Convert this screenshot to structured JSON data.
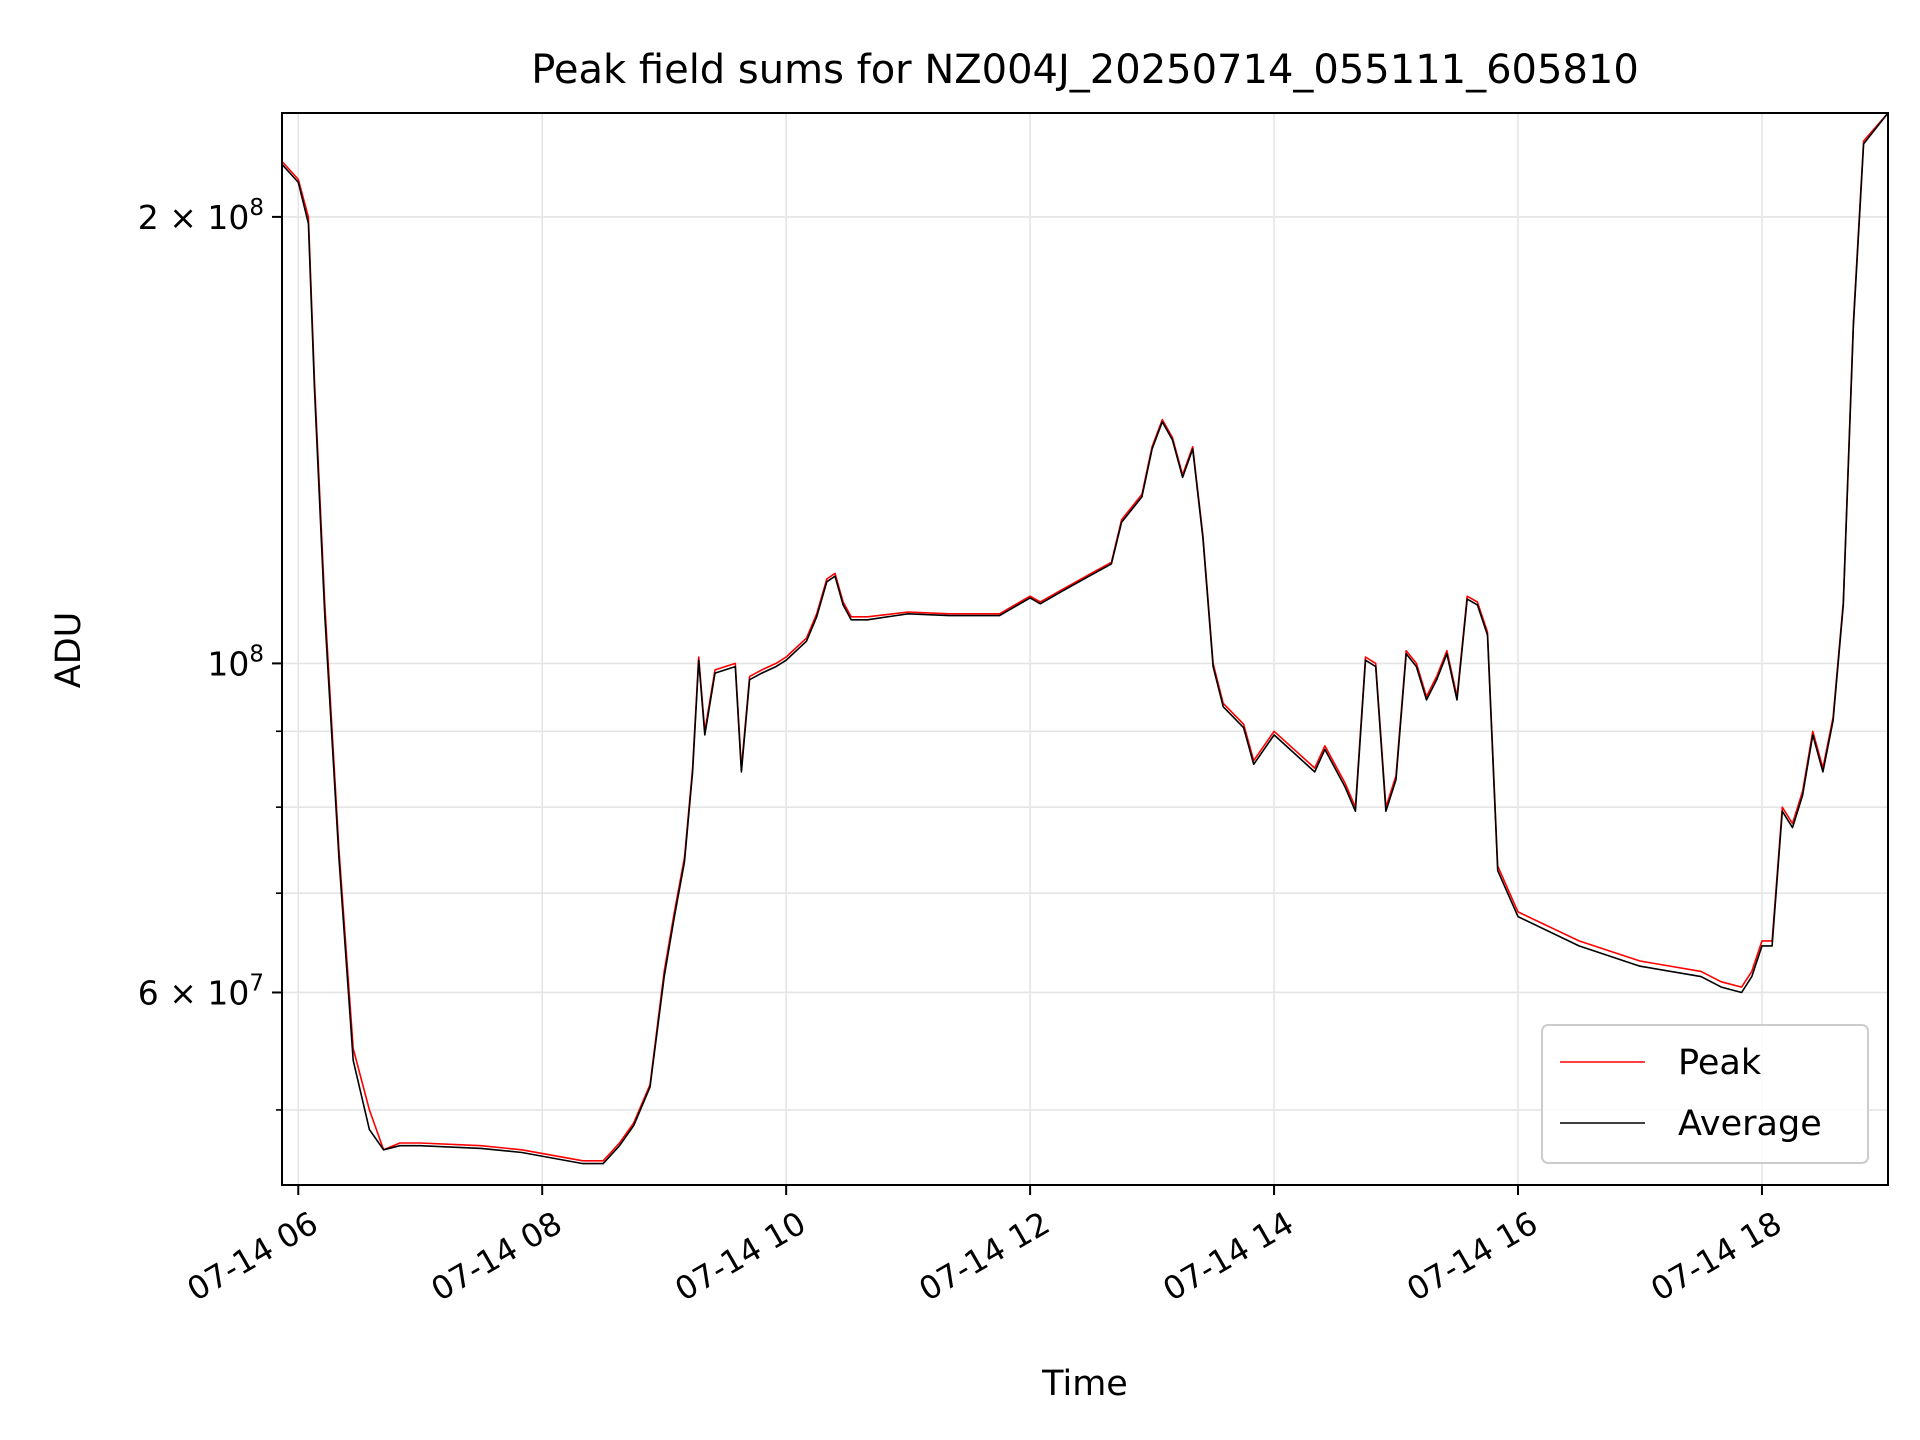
{
  "chart_data": {
    "type": "line",
    "title": "Peak field sums for NZ004J_20250714_055111_605810",
    "xlabel": "Time",
    "ylabel": "ADU",
    "y_scale": "log",
    "xlim": [
      "2025-07-14 05:52",
      "2025-07-14 19:02"
    ],
    "ylim": [
      44500000,
      235000000
    ],
    "grid": true,
    "legend_position": "lower-right",
    "x_ticks": [
      {
        "t": "2025-07-14 06:00",
        "label": "07-14 06"
      },
      {
        "t": "2025-07-14 08:00",
        "label": "07-14 08"
      },
      {
        "t": "2025-07-14 10:00",
        "label": "07-14 10"
      },
      {
        "t": "2025-07-14 12:00",
        "label": "07-14 12"
      },
      {
        "t": "2025-07-14 14:00",
        "label": "07-14 14"
      },
      {
        "t": "2025-07-14 16:00",
        "label": "07-14 16"
      },
      {
        "t": "2025-07-14 18:00",
        "label": "07-14 18"
      }
    ],
    "y_major_ticks": [
      {
        "v": 60000000,
        "mantissa": "6",
        "exp": "7"
      },
      {
        "v": 100000000,
        "mantissa": "",
        "exp": "8"
      },
      {
        "v": 200000000,
        "mantissa": "2",
        "exp": "8"
      }
    ],
    "y_minor_ticks": [
      50000000,
      70000000,
      80000000,
      90000000
    ],
    "series": [
      {
        "name": "Peak",
        "color": "#ff0000",
        "x": [
          "2025-07-14 05:52",
          "2025-07-14 06:00",
          "2025-07-14 06:05",
          "2025-07-14 06:08",
          "2025-07-14 06:13",
          "2025-07-14 06:20",
          "2025-07-14 06:27",
          "2025-07-14 06:35",
          "2025-07-14 06:42",
          "2025-07-14 06:50",
          "2025-07-14 07:00",
          "2025-07-14 07:30",
          "2025-07-14 07:50",
          "2025-07-14 08:20",
          "2025-07-14 08:30",
          "2025-07-14 08:38",
          "2025-07-14 08:45",
          "2025-07-14 08:53",
          "2025-07-14 09:00",
          "2025-07-14 09:05",
          "2025-07-14 09:10",
          "2025-07-14 09:14",
          "2025-07-14 09:17",
          "2025-07-14 09:20",
          "2025-07-14 09:25",
          "2025-07-14 09:35",
          "2025-07-14 09:38",
          "2025-07-14 09:42",
          "2025-07-14 09:48",
          "2025-07-14 09:55",
          "2025-07-14 10:00",
          "2025-07-14 10:10",
          "2025-07-14 10:15",
          "2025-07-14 10:20",
          "2025-07-14 10:24",
          "2025-07-14 10:28",
          "2025-07-14 10:32",
          "2025-07-14 10:40",
          "2025-07-14 11:00",
          "2025-07-14 11:20",
          "2025-07-14 11:45",
          "2025-07-14 11:55",
          "2025-07-14 12:00",
          "2025-07-14 12:05",
          "2025-07-14 12:15",
          "2025-07-14 12:30",
          "2025-07-14 12:40",
          "2025-07-14 12:45",
          "2025-07-14 12:55",
          "2025-07-14 13:00",
          "2025-07-14 13:05",
          "2025-07-14 13:10",
          "2025-07-14 13:15",
          "2025-07-14 13:20",
          "2025-07-14 13:25",
          "2025-07-14 13:30",
          "2025-07-14 13:35",
          "2025-07-14 13:45",
          "2025-07-14 13:50",
          "2025-07-14 14:00",
          "2025-07-14 14:20",
          "2025-07-14 14:25",
          "2025-07-14 14:35",
          "2025-07-14 14:40",
          "2025-07-14 14:45",
          "2025-07-14 14:50",
          "2025-07-14 14:55",
          "2025-07-14 15:00",
          "2025-07-14 15:05",
          "2025-07-14 15:10",
          "2025-07-14 15:15",
          "2025-07-14 15:20",
          "2025-07-14 15:25",
          "2025-07-14 15:30",
          "2025-07-14 15:35",
          "2025-07-14 15:40",
          "2025-07-14 15:45",
          "2025-07-14 15:50",
          "2025-07-14 16:00",
          "2025-07-14 16:30",
          "2025-07-14 17:00",
          "2025-07-14 17:30",
          "2025-07-14 17:40",
          "2025-07-14 17:50",
          "2025-07-14 17:55",
          "2025-07-14 18:00",
          "2025-07-14 18:05",
          "2025-07-14 18:10",
          "2025-07-14 18:15",
          "2025-07-14 18:20",
          "2025-07-14 18:25",
          "2025-07-14 18:30",
          "2025-07-14 18:35",
          "2025-07-14 18:40",
          "2025-07-14 18:45",
          "2025-07-14 18:50",
          "2025-07-14 19:02"
        ],
        "y": [
          218000000,
          212000000,
          200000000,
          155000000,
          110000000,
          75000000,
          55000000,
          50000000,
          47000000,
          47500000,
          47500000,
          47300000,
          47000000,
          46200000,
          46200000,
          47500000,
          49000000,
          52000000,
          62000000,
          68000000,
          74000000,
          85000000,
          101000000,
          90000000,
          99000000,
          100000000,
          85000000,
          98000000,
          99000000,
          100000000,
          101000000,
          104000000,
          108000000,
          114000000,
          115000000,
          110000000,
          107500000,
          107500000,
          108300000,
          108000000,
          108000000,
          110000000,
          111000000,
          110000000,
          112000000,
          115000000,
          117000000,
          125000000,
          130000000,
          140000000,
          146000000,
          142000000,
          134000000,
          140000000,
          122000000,
          100000000,
          94000000,
          91000000,
          86000000,
          90000000,
          85000000,
          88000000,
          83000000,
          80000000,
          101000000,
          100000000,
          80000000,
          84000000,
          102000000,
          100000000,
          95000000,
          98000000,
          102000000,
          95000000,
          111000000,
          110000000,
          105000000,
          73000000,
          68000000,
          65000000,
          63000000,
          62000000,
          61000000,
          60500000,
          62000000,
          65000000,
          65000000,
          80000000,
          78000000,
          82000000,
          90000000,
          85000000,
          92000000,
          110000000,
          170000000,
          225000000,
          235000000
        ]
      },
      {
        "name": "Average",
        "color": "#000000",
        "x": [
          "2025-07-14 05:52",
          "2025-07-14 06:00",
          "2025-07-14 06:05",
          "2025-07-14 06:08",
          "2025-07-14 06:13",
          "2025-07-14 06:20",
          "2025-07-14 06:27",
          "2025-07-14 06:35",
          "2025-07-14 06:42",
          "2025-07-14 06:50",
          "2025-07-14 07:00",
          "2025-07-14 07:30",
          "2025-07-14 07:50",
          "2025-07-14 08:20",
          "2025-07-14 08:30",
          "2025-07-14 08:38",
          "2025-07-14 08:45",
          "2025-07-14 08:53",
          "2025-07-14 09:00",
          "2025-07-14 09:05",
          "2025-07-14 09:10",
          "2025-07-14 09:14",
          "2025-07-14 09:17",
          "2025-07-14 09:20",
          "2025-07-14 09:25",
          "2025-07-14 09:35",
          "2025-07-14 09:38",
          "2025-07-14 09:42",
          "2025-07-14 09:48",
          "2025-07-14 09:55",
          "2025-07-14 10:00",
          "2025-07-14 10:10",
          "2025-07-14 10:15",
          "2025-07-14 10:20",
          "2025-07-14 10:24",
          "2025-07-14 10:28",
          "2025-07-14 10:32",
          "2025-07-14 10:40",
          "2025-07-14 11:00",
          "2025-07-14 11:20",
          "2025-07-14 11:45",
          "2025-07-14 11:55",
          "2025-07-14 12:00",
          "2025-07-14 12:05",
          "2025-07-14 12:15",
          "2025-07-14 12:30",
          "2025-07-14 12:40",
          "2025-07-14 12:45",
          "2025-07-14 12:55",
          "2025-07-14 13:00",
          "2025-07-14 13:05",
          "2025-07-14 13:10",
          "2025-07-14 13:15",
          "2025-07-14 13:20",
          "2025-07-14 13:25",
          "2025-07-14 13:30",
          "2025-07-14 13:35",
          "2025-07-14 13:45",
          "2025-07-14 13:50",
          "2025-07-14 14:00",
          "2025-07-14 14:20",
          "2025-07-14 14:25",
          "2025-07-14 14:35",
          "2025-07-14 14:40",
          "2025-07-14 14:45",
          "2025-07-14 14:50",
          "2025-07-14 14:55",
          "2025-07-14 15:00",
          "2025-07-14 15:05",
          "2025-07-14 15:10",
          "2025-07-14 15:15",
          "2025-07-14 15:20",
          "2025-07-14 15:25",
          "2025-07-14 15:30",
          "2025-07-14 15:35",
          "2025-07-14 15:40",
          "2025-07-14 15:45",
          "2025-07-14 15:50",
          "2025-07-14 16:00",
          "2025-07-14 16:30",
          "2025-07-14 17:00",
          "2025-07-14 17:30",
          "2025-07-14 17:40",
          "2025-07-14 17:50",
          "2025-07-14 17:55",
          "2025-07-14 18:00",
          "2025-07-14 18:05",
          "2025-07-14 18:10",
          "2025-07-14 18:15",
          "2025-07-14 18:20",
          "2025-07-14 18:25",
          "2025-07-14 18:30",
          "2025-07-14 18:35",
          "2025-07-14 18:40",
          "2025-07-14 18:45",
          "2025-07-14 18:50",
          "2025-07-14 19:02"
        ],
        "y": [
          217000000,
          211000000,
          198000000,
          153000000,
          108000000,
          74000000,
          54000000,
          48500000,
          47000000,
          47300000,
          47300000,
          47100000,
          46800000,
          46000000,
          46000000,
          47300000,
          48800000,
          51800000,
          61500000,
          67500000,
          73500000,
          84500000,
          100500000,
          89500000,
          98500000,
          99500000,
          84500000,
          97500000,
          98500000,
          99500000,
          100500000,
          103500000,
          107500000,
          113500000,
          114500000,
          109500000,
          107000000,
          107000000,
          108000000,
          107700000,
          107700000,
          109700000,
          110700000,
          109700000,
          111700000,
          114700000,
          116700000,
          124500000,
          129500000,
          139500000,
          145500000,
          141500000,
          133500000,
          139500000,
          121500000,
          99500000,
          93500000,
          90500000,
          85500000,
          89500000,
          84500000,
          87500000,
          82500000,
          79500000,
          100500000,
          99500000,
          79500000,
          83500000,
          101500000,
          99500000,
          94500000,
          97500000,
          101500000,
          94500000,
          110500000,
          109500000,
          104500000,
          72500000,
          67500000,
          64500000,
          62500000,
          61500000,
          60500000,
          60000000,
          61500000,
          64500000,
          64500000,
          79500000,
          77500000,
          81500000,
          89500000,
          84500000,
          91500000,
          109500000,
          169000000,
          224000000,
          235000000
        ]
      }
    ]
  }
}
